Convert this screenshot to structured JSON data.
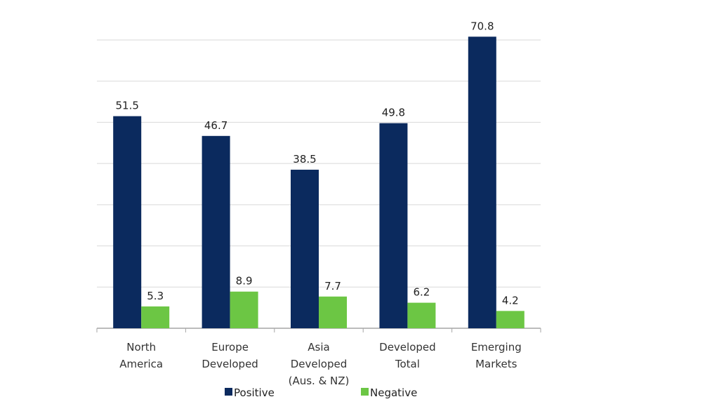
{
  "chart_data": {
    "type": "bar",
    "categories": [
      [
        "North",
        "America"
      ],
      [
        "Europe",
        "Developed"
      ],
      [
        "Asia",
        "Developed",
        "(Aus. & NZ)"
      ],
      [
        "Developed",
        "Total"
      ],
      [
        "Emerging",
        "Markets"
      ]
    ],
    "series": [
      {
        "name": "Positive",
        "values": [
          51.5,
          46.7,
          38.5,
          49.8,
          70.8
        ],
        "color": "#0b2a5e"
      },
      {
        "name": "Negative",
        "values": [
          5.3,
          8.9,
          7.7,
          6.2,
          4.2
        ],
        "color": "#6cc644"
      }
    ],
    "ylim": [
      0,
      70
    ],
    "ytick_step": 10,
    "grid": true,
    "y_tick_labels_shown": false,
    "legend": "bottom",
    "data_labels": true
  }
}
